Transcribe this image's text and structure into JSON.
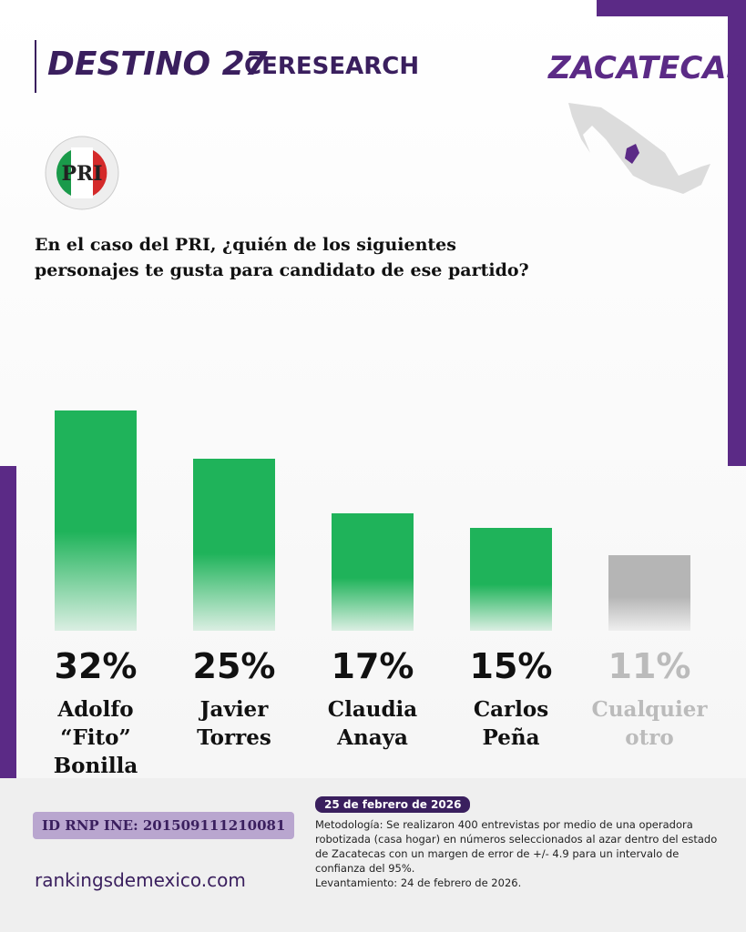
{
  "header": {
    "brand": "DESTINO 27",
    "partner": "CERESEARCH",
    "state": "ZACATECAS",
    "party": "PRI",
    "question": "En el caso del PRI, ¿quién de los siguientes personajes te gusta para candidato de ese partido?"
  },
  "chart_data": {
    "type": "bar",
    "categories": [
      "Adolfo “Fito” Bonilla",
      "Javier Torres",
      "Claudia Anaya",
      "Carlos Peña",
      "Cualquier otro"
    ],
    "values": [
      32,
      25,
      17,
      15,
      11
    ],
    "value_labels": [
      "32%",
      "25%",
      "17%",
      "15%",
      "11%"
    ],
    "colors": [
      "#1fb35a",
      "#1fb35a",
      "#1fb35a",
      "#1fb35a",
      "#b5b5b5"
    ]
  },
  "footer": {
    "date": "25 de febrero de 2026",
    "methodology": "Metodología: Se realizaron 400 entrevistas por medio de una operadora robotizada (casa hogar) en números seleccionados al azar dentro del estado de Zacatecas con un margen de error de +/- 4.9 para un intervalo de confianza del 95%.",
    "survey_date": "Levantamiento: 24 de febrero de 2026.",
    "id": "ID RNP INE: 201509111210081",
    "website": "rankingsdemexico.com"
  }
}
